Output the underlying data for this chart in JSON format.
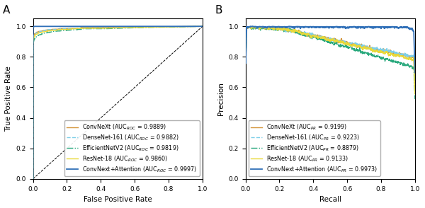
{
  "roc": {
    "title": "A",
    "xlabel": "False Positive Rate",
    "ylabel": "True Positive Rate",
    "models": [
      {
        "name": "ConvNeXt",
        "auc": 0.9889,
        "color": "#d4943a",
        "linestyle": "-",
        "linewidth": 1.0,
        "seed": 1
      },
      {
        "name": "DenseNet-161",
        "auc": 0.9882,
        "color": "#7ecfe8",
        "linestyle": "--",
        "linewidth": 1.0,
        "seed": 2
      },
      {
        "name": "EfficientNetV2",
        "auc": 0.9819,
        "color": "#28a87c",
        "linestyle": "-.",
        "linewidth": 1.0,
        "seed": 3
      },
      {
        "name": "ResNet-18",
        "auc": 0.986,
        "color": "#e8d83a",
        "linestyle": "-",
        "linewidth": 1.0,
        "seed": 4
      },
      {
        "name": "ConvNext+Attention",
        "auc": 0.9997,
        "color": "#3070b8",
        "linestyle": "-",
        "linewidth": 1.3,
        "seed": 5
      }
    ]
  },
  "pr": {
    "title": "B",
    "xlabel": "Recall",
    "ylabel": "Precision",
    "models": [
      {
        "name": "ConvNeXt",
        "auc": 0.9199,
        "color": "#d4943a",
        "linestyle": "-",
        "linewidth": 1.0,
        "seed": 1
      },
      {
        "name": "DenseNet-161",
        "auc": 0.9223,
        "color": "#7ecfe8",
        "linestyle": "--",
        "linewidth": 1.0,
        "seed": 2
      },
      {
        "name": "EfficientNetV2",
        "auc": 0.8879,
        "color": "#28a87c",
        "linestyle": "-.",
        "linewidth": 1.0,
        "seed": 3
      },
      {
        "name": "ResNet-18",
        "auc": 0.9133,
        "color": "#e8d83a",
        "linestyle": "-",
        "linewidth": 1.0,
        "seed": 4
      },
      {
        "name": "ConvNext+Attention",
        "auc": 0.9973,
        "color": "#3070b8",
        "linestyle": "-",
        "linewidth": 1.3,
        "seed": 5
      }
    ]
  },
  "legend_fontsize": 5.8,
  "axis_label_fontsize": 7.5,
  "tick_fontsize": 6.5,
  "title_fontsize": 11
}
